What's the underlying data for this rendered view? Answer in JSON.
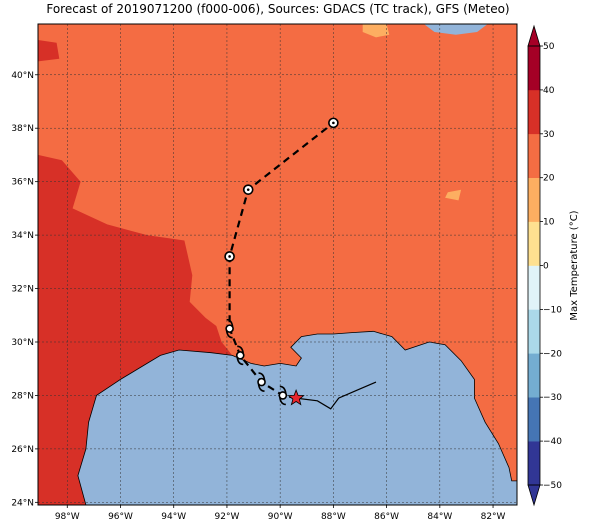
{
  "title": "Forecast of 2019071200 (f000-006), Sources: GDACS (TC track), GFS (Meteo)",
  "map": {
    "lon_range": [
      -99.1,
      -81.1
    ],
    "lat_range": [
      23.9,
      41.9
    ],
    "x_ticks": [
      {
        "value": -98,
        "label": "98°W"
      },
      {
        "value": -96,
        "label": "96°W"
      },
      {
        "value": -94,
        "label": "94°W"
      },
      {
        "value": -92,
        "label": "92°W"
      },
      {
        "value": -90,
        "label": "90°W"
      },
      {
        "value": -88,
        "label": "88°W"
      },
      {
        "value": -86,
        "label": "86°W"
      },
      {
        "value": -84,
        "label": "84°W"
      },
      {
        "value": -82,
        "label": "82°W"
      }
    ],
    "y_ticks": [
      {
        "value": 24,
        "label": "24°N"
      },
      {
        "value": 26,
        "label": "26°N"
      },
      {
        "value": 28,
        "label": "28°N"
      },
      {
        "value": 30,
        "label": "30°N"
      },
      {
        "value": 32,
        "label": "32°N"
      },
      {
        "value": 34,
        "label": "34°N"
      },
      {
        "value": 36,
        "label": "36°N"
      },
      {
        "value": 38,
        "label": "38°N"
      },
      {
        "value": 40,
        "label": "40°N"
      }
    ],
    "grid": true,
    "colors": {
      "ocean": "#92b4d9",
      "land_main": "#f46c43",
      "land_hot": "#d73027",
      "land_warm": "#fdae61"
    }
  },
  "track": {
    "forecast_points": [
      {
        "lon": -89.4,
        "lat": 27.9,
        "marker": "star"
      },
      {
        "lon": -89.9,
        "lat": 28.0,
        "marker": "tc"
      },
      {
        "lon": -90.7,
        "lat": 28.5,
        "marker": "tc"
      },
      {
        "lon": -91.5,
        "lat": 29.5,
        "marker": "tc"
      },
      {
        "lon": -91.9,
        "lat": 30.5,
        "marker": "tc"
      },
      {
        "lon": -91.9,
        "lat": 33.2,
        "marker": "circle"
      },
      {
        "lon": -91.2,
        "lat": 35.7,
        "marker": "circle"
      },
      {
        "lon": -88.0,
        "lat": 38.2,
        "marker": "circle"
      }
    ],
    "past_track": [
      {
        "lon": -86.4,
        "lat": 28.5
      },
      {
        "lon": -87.1,
        "lat": 28.2
      },
      {
        "lon": -87.8,
        "lat": 27.9
      },
      {
        "lon": -88.1,
        "lat": 27.5
      },
      {
        "lon": -88.6,
        "lat": 27.8
      },
      {
        "lon": -89.4,
        "lat": 27.9
      }
    ]
  },
  "colorbar": {
    "label": "Max Temperature (°C)",
    "min": -50,
    "max": 50,
    "tick_labels": [
      "−50",
      "−40",
      "−30",
      "−20",
      "−10",
      "0",
      "10",
      "20",
      "30",
      "40",
      "50"
    ],
    "colors": [
      "#313695",
      "#4575b4",
      "#74add1",
      "#abd9e9",
      "#e0f3f8",
      "#fee090",
      "#fdae61",
      "#f46d43",
      "#d73027",
      "#a50026"
    ]
  }
}
